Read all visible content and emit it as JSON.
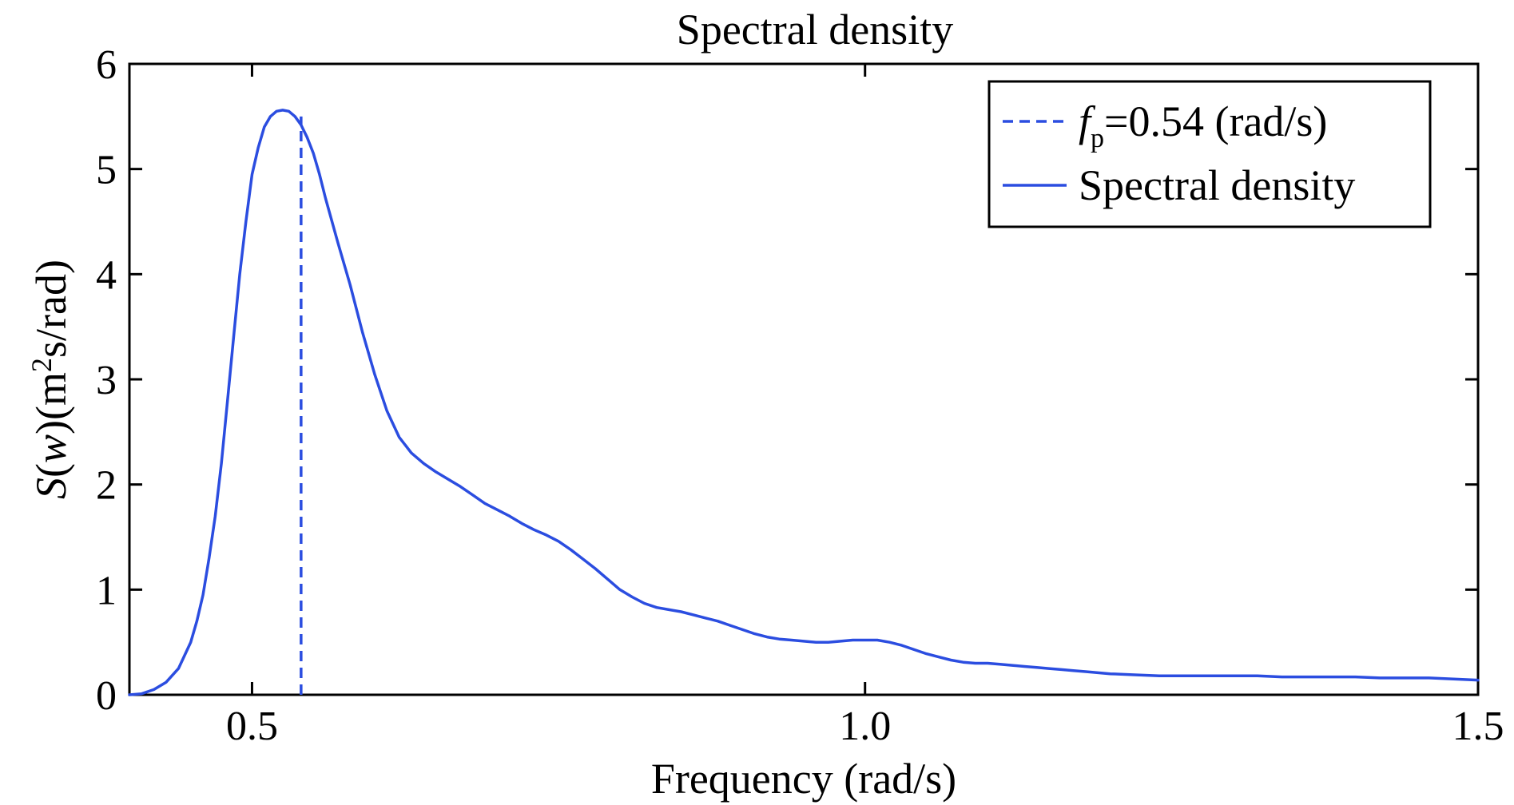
{
  "chart_data": {
    "type": "line",
    "title": "Spectral density",
    "xlabel": "Frequency (rad/s)",
    "ylabel": {
      "pre_italic": "S",
      "open": "(",
      "italic_var": "w",
      "mid": ")(m",
      "sup": "2",
      "post": "s/rad)"
    },
    "xlim": [
      0.4,
      1.5
    ],
    "ylim": [
      0,
      6
    ],
    "xticks": [
      0.5,
      1.0,
      1.5
    ],
    "xtick_labels": [
      "0.5",
      "1.0",
      "1.5"
    ],
    "yticks": [
      0,
      1,
      2,
      3,
      4,
      5,
      6
    ],
    "ytick_labels": [
      "0",
      "1",
      "2",
      "3",
      "4",
      "5",
      "6"
    ],
    "grid": false,
    "legend_position": "top-right",
    "legend": [
      {
        "label_parts": {
          "var": "f",
          "sub": "p",
          "rest": "=0.54 (rad/s)"
        },
        "style": "dashed",
        "color": "#2b4de0"
      },
      {
        "label": "Spectral density",
        "style": "solid",
        "color": "#2b4de0"
      }
    ],
    "vline": {
      "x": 0.54,
      "ymax": 5.5,
      "style": "dashed",
      "color": "#2b4de0"
    },
    "series": [
      {
        "name": "Spectral density",
        "color": "#2b4de0",
        "x": [
          0.4,
          0.41,
          0.42,
          0.43,
          0.44,
          0.45,
          0.455,
          0.46,
          0.465,
          0.47,
          0.475,
          0.48,
          0.485,
          0.49,
          0.495,
          0.5,
          0.505,
          0.51,
          0.515,
          0.52,
          0.525,
          0.53,
          0.535,
          0.54,
          0.545,
          0.55,
          0.555,
          0.56,
          0.57,
          0.58,
          0.59,
          0.6,
          0.61,
          0.62,
          0.63,
          0.64,
          0.65,
          0.66,
          0.67,
          0.68,
          0.69,
          0.7,
          0.71,
          0.72,
          0.73,
          0.74,
          0.75,
          0.76,
          0.77,
          0.78,
          0.79,
          0.8,
          0.81,
          0.82,
          0.83,
          0.84,
          0.85,
          0.86,
          0.87,
          0.88,
          0.89,
          0.9,
          0.91,
          0.92,
          0.93,
          0.94,
          0.95,
          0.96,
          0.97,
          0.98,
          0.99,
          1.0,
          1.01,
          1.02,
          1.03,
          1.04,
          1.05,
          1.06,
          1.07,
          1.08,
          1.09,
          1.1,
          1.11,
          1.12,
          1.13,
          1.14,
          1.15,
          1.16,
          1.17,
          1.18,
          1.19,
          1.2,
          1.22,
          1.24,
          1.26,
          1.28,
          1.3,
          1.32,
          1.34,
          1.36,
          1.38,
          1.4,
          1.42,
          1.44,
          1.46,
          1.48,
          1.5
        ],
        "values": [
          0.0,
          0.01,
          0.05,
          0.12,
          0.25,
          0.5,
          0.7,
          0.95,
          1.3,
          1.7,
          2.2,
          2.8,
          3.4,
          4.0,
          4.5,
          4.95,
          5.2,
          5.4,
          5.5,
          5.55,
          5.56,
          5.55,
          5.5,
          5.42,
          5.3,
          5.15,
          4.95,
          4.72,
          4.3,
          3.9,
          3.45,
          3.05,
          2.7,
          2.45,
          2.3,
          2.2,
          2.12,
          2.05,
          1.98,
          1.9,
          1.82,
          1.76,
          1.7,
          1.63,
          1.57,
          1.52,
          1.46,
          1.38,
          1.29,
          1.2,
          1.1,
          1.0,
          0.93,
          0.87,
          0.83,
          0.81,
          0.79,
          0.76,
          0.73,
          0.7,
          0.66,
          0.62,
          0.58,
          0.55,
          0.53,
          0.52,
          0.51,
          0.5,
          0.5,
          0.51,
          0.52,
          0.52,
          0.52,
          0.5,
          0.47,
          0.43,
          0.39,
          0.36,
          0.33,
          0.31,
          0.3,
          0.3,
          0.29,
          0.28,
          0.27,
          0.26,
          0.25,
          0.24,
          0.23,
          0.22,
          0.21,
          0.2,
          0.19,
          0.18,
          0.18,
          0.18,
          0.18,
          0.18,
          0.17,
          0.17,
          0.17,
          0.17,
          0.16,
          0.16,
          0.16,
          0.15,
          0.14
        ]
      }
    ]
  }
}
